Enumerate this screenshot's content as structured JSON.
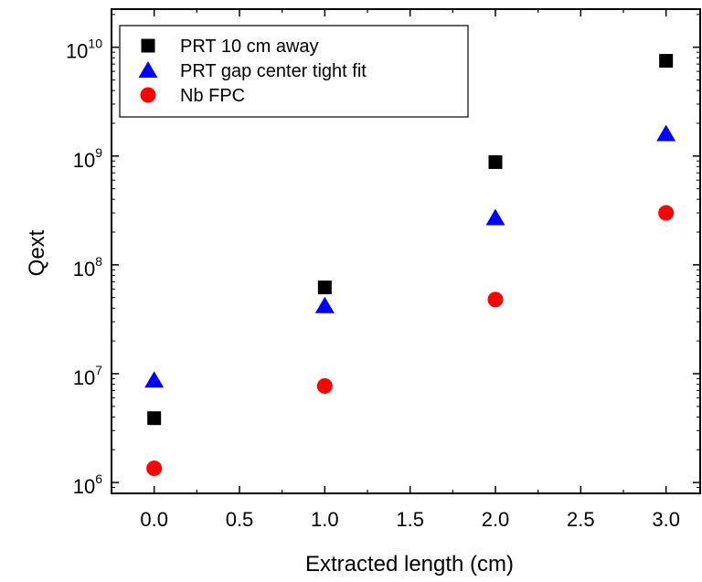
{
  "chart_data": {
    "type": "scatter",
    "xlabel": "Extracted length (cm)",
    "ylabel": "Qext",
    "xlim": [
      -0.25,
      3.2
    ],
    "ylim_log10": [
      5.9,
      10.35
    ],
    "y_scale": "log",
    "x_ticks": [
      0.0,
      0.5,
      1.0,
      1.5,
      2.0,
      2.5,
      3.0
    ],
    "x_tick_labels": [
      "0.0",
      "0.5",
      "1.0",
      "1.5",
      "2.0",
      "2.5",
      "3.0"
    ],
    "y_tick_exponents": [
      6,
      7,
      8,
      9,
      10
    ],
    "y_tick_base": "10",
    "legend_position": "top-left",
    "series": [
      {
        "name": "PRT 10 cm away",
        "marker": "square",
        "color": "#000000",
        "x": [
          0.0,
          1.0,
          2.0,
          3.0
        ],
        "y": [
          3900000,
          62000000,
          880000000,
          7500000000
        ]
      },
      {
        "name": "PRT gap center tight fit",
        "marker": "triangle",
        "color": "#0000ff",
        "x": [
          0.0,
          1.0,
          2.0,
          3.0
        ],
        "y": [
          8700000,
          42000000,
          270000000,
          1600000000
        ]
      },
      {
        "name": "Nb FPC",
        "marker": "circle",
        "color": "#ff0000",
        "x": [
          0.0,
          1.0,
          2.0,
          3.0
        ],
        "y": [
          1350000,
          7700000,
          48000000,
          300000000
        ]
      }
    ]
  }
}
